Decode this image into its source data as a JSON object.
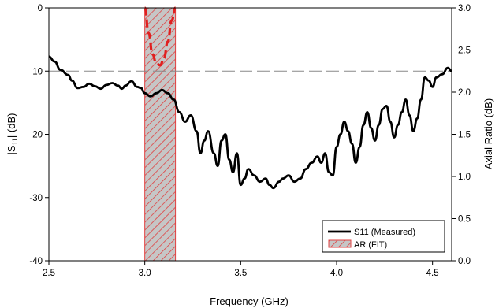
{
  "chart_data": {
    "type": "line",
    "xlabel": "Frequency (GHz)",
    "ylabel_left": "|S11| (dB)",
    "ylabel_left_main": "|S",
    "ylabel_left_sub": "11",
    "ylabel_left_tail": "| (dB)",
    "ylabel_right": "Axial Ratio (dB)",
    "xlim": [
      2.5,
      4.6
    ],
    "ylim_left": [
      -40,
      0
    ],
    "ylim_right": [
      0.0,
      3.0
    ],
    "x_ticks": [
      "2.5",
      "3.0",
      "3.5",
      "4.0",
      "4.5"
    ],
    "y_left_ticks": [
      "-40",
      "-30",
      "-20",
      "-10",
      "0"
    ],
    "y_right_ticks": [
      "0.0",
      "0.5",
      "1.0",
      "1.5",
      "2.0",
      "2.5",
      "3.0"
    ],
    "reference_line": {
      "axis": "left",
      "value": -10,
      "style": "dashed",
      "color": "#888888"
    },
    "legend": {
      "placement": "bottom-right",
      "entries": [
        "S11 (Measured)",
        "AR (FIT)"
      ]
    },
    "shaded_band": {
      "x_start": 3.0,
      "x_end": 3.16,
      "label": "AR (FIT)",
      "fill": "#c0c0c0",
      "hatch": "#e03030"
    },
    "series": [
      {
        "name": "S11 (Measured)",
        "axis": "left",
        "color": "#000000",
        "points": [
          [
            2.5,
            -7.7
          ],
          [
            2.53,
            -8.5
          ],
          [
            2.56,
            -9.8
          ],
          [
            2.6,
            -10.6
          ],
          [
            2.62,
            -11.5
          ],
          [
            2.65,
            -12.7
          ],
          [
            2.68,
            -12.5
          ],
          [
            2.71,
            -12.0
          ],
          [
            2.74,
            -12.4
          ],
          [
            2.77,
            -12.8
          ],
          [
            2.8,
            -12.2
          ],
          [
            2.83,
            -11.9
          ],
          [
            2.86,
            -12.3
          ],
          [
            2.88,
            -12.8
          ],
          [
            2.9,
            -12.3
          ],
          [
            2.93,
            -11.6
          ],
          [
            2.96,
            -12.5
          ],
          [
            2.98,
            -12.7
          ],
          [
            3.0,
            -13.5
          ],
          [
            3.03,
            -14.0
          ],
          [
            3.06,
            -13.5
          ],
          [
            3.09,
            -13.0
          ],
          [
            3.12,
            -13.5
          ],
          [
            3.15,
            -14.5
          ],
          [
            3.18,
            -16.5
          ],
          [
            3.21,
            -18.0
          ],
          [
            3.24,
            -17.0
          ],
          [
            3.27,
            -19.5
          ],
          [
            3.29,
            -23.0
          ],
          [
            3.31,
            -21.0
          ],
          [
            3.33,
            -19.5
          ],
          [
            3.36,
            -23.0
          ],
          [
            3.38,
            -25.0
          ],
          [
            3.4,
            -21.0
          ],
          [
            3.42,
            -20.0
          ],
          [
            3.44,
            -24.0
          ],
          [
            3.46,
            -26.0
          ],
          [
            3.48,
            -23.0
          ],
          [
            3.5,
            -28.0
          ],
          [
            3.52,
            -27.0
          ],
          [
            3.54,
            -25.5
          ],
          [
            3.57,
            -26.5
          ],
          [
            3.6,
            -27.5
          ],
          [
            3.63,
            -27.0
          ],
          [
            3.65,
            -28.0
          ],
          [
            3.67,
            -28.5
          ],
          [
            3.7,
            -27.5
          ],
          [
            3.72,
            -27.0
          ],
          [
            3.75,
            -26.5
          ],
          [
            3.78,
            -27.5
          ],
          [
            3.81,
            -27.0
          ],
          [
            3.84,
            -25.5
          ],
          [
            3.87,
            -24.5
          ],
          [
            3.9,
            -23.5
          ],
          [
            3.92,
            -24.5
          ],
          [
            3.94,
            -23.0
          ],
          [
            3.96,
            -26.0
          ],
          [
            3.98,
            -26.5
          ],
          [
            4.0,
            -22.0
          ],
          [
            4.02,
            -20.0
          ],
          [
            4.04,
            -18.0
          ],
          [
            4.06,
            -19.5
          ],
          [
            4.08,
            -21.5
          ],
          [
            4.1,
            -24.5
          ],
          [
            4.12,
            -22.0
          ],
          [
            4.14,
            -18.5
          ],
          [
            4.16,
            -16.5
          ],
          [
            4.18,
            -19.0
          ],
          [
            4.2,
            -21.0
          ],
          [
            4.22,
            -18.5
          ],
          [
            4.24,
            -16.0
          ],
          [
            4.26,
            -15.5
          ],
          [
            4.28,
            -18.0
          ],
          [
            4.3,
            -20.5
          ],
          [
            4.32,
            -18.5
          ],
          [
            4.34,
            -16.5
          ],
          [
            4.36,
            -14.5
          ],
          [
            4.38,
            -17.0
          ],
          [
            4.4,
            -19.5
          ],
          [
            4.42,
            -17.5
          ],
          [
            4.44,
            -14.5
          ],
          [
            4.46,
            -11.0
          ],
          [
            4.48,
            -11.5
          ],
          [
            4.5,
            -12.5
          ],
          [
            4.52,
            -11.0
          ],
          [
            4.55,
            -10.5
          ],
          [
            4.58,
            -9.5
          ],
          [
            4.6,
            -10.0
          ]
        ]
      },
      {
        "name": "AR (FIT)",
        "axis": "right",
        "color": "#e02020",
        "style": "dashed",
        "points": [
          [
            3.0,
            3.0
          ],
          [
            3.02,
            2.7
          ],
          [
            3.04,
            2.45
          ],
          [
            3.06,
            2.34
          ],
          [
            3.08,
            2.32
          ],
          [
            3.1,
            2.4
          ],
          [
            3.12,
            2.6
          ],
          [
            3.14,
            2.85
          ],
          [
            3.16,
            3.0
          ]
        ]
      }
    ]
  }
}
